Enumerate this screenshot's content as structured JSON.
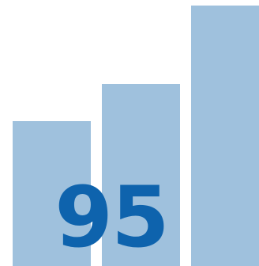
{
  "icon": {
    "name": "bar-chart-icon",
    "score": "95",
    "bar_levels": [
      0.545,
      0.685,
      0.98
    ],
    "bar_color": "#9fc1dd",
    "text_color": "#0e63ad",
    "background_color": "#ffffff"
  }
}
